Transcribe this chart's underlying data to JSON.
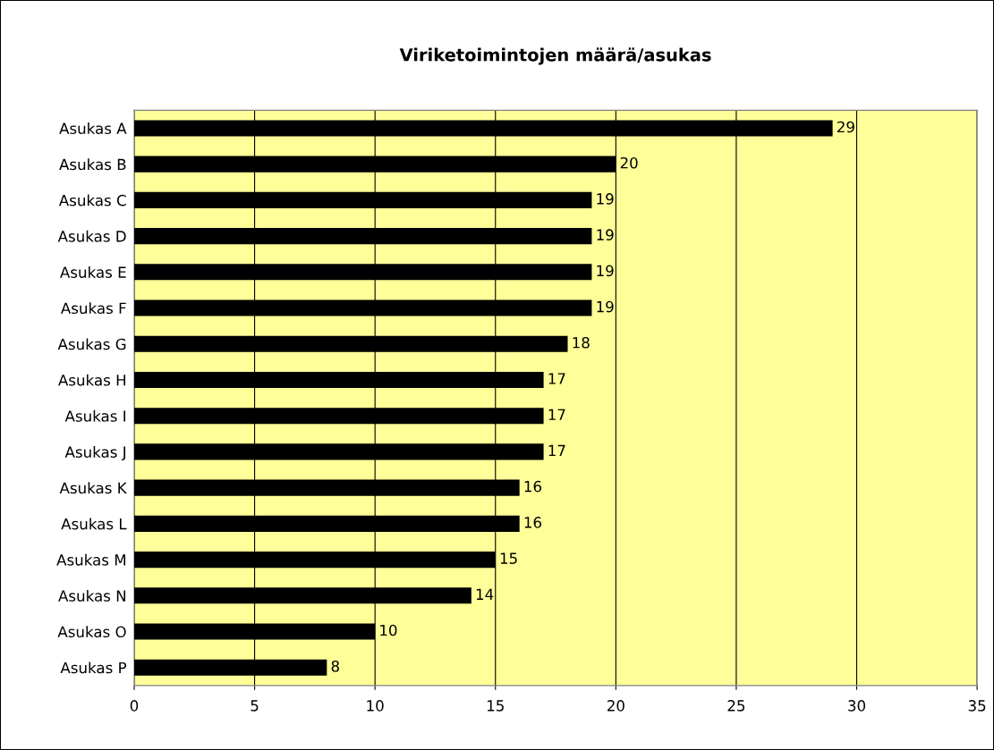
{
  "chart_data": {
    "type": "bar",
    "orientation": "horizontal",
    "title": "Viriketoimintojen määrä/asukas",
    "categories": [
      "Asukas A",
      "Asukas B",
      "Asukas C",
      "Asukas D",
      "Asukas E",
      "Asukas F",
      "Asukas G",
      "Asukas H",
      "Asukas I",
      "Asukas J",
      "Asukas K",
      "Asukas L",
      "Asukas M",
      "Asukas N",
      "Asukas O",
      "Asukas P"
    ],
    "values": [
      29,
      20,
      19,
      19,
      19,
      19,
      18,
      17,
      17,
      17,
      16,
      16,
      15,
      14,
      10,
      8
    ],
    "color": "#000000",
    "xlim": [
      0,
      35
    ],
    "xticks": [
      0,
      5,
      10,
      15,
      20,
      25,
      30,
      35
    ],
    "grid": "x",
    "data_labels": true
  }
}
